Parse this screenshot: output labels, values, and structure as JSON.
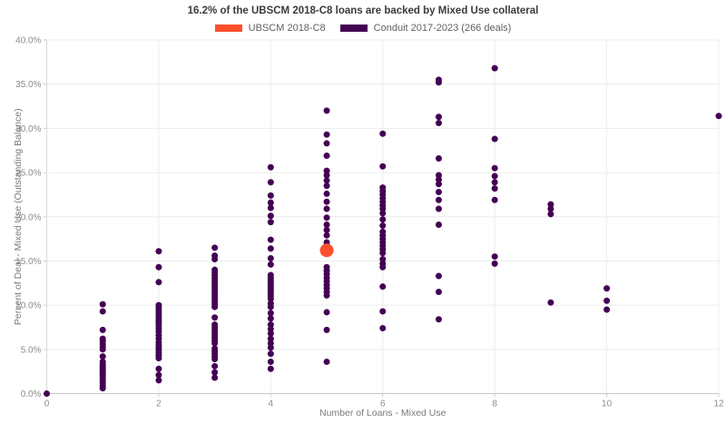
{
  "title": "16.2% of the UBSCM 2018-C8 loans are backed by Mixed Use collateral",
  "legend": [
    {
      "label": "UBSCM 2018-C8",
      "color": "#fb4f2b"
    },
    {
      "label": "Conduit 2017-2023 (266 deals)",
      "color": "#440154"
    }
  ],
  "chart_data": {
    "type": "scatter",
    "title": "16.2% of the UBSCM 2018-C8 loans are backed by Mixed Use collateral",
    "xlabel": "Number of Loans - Mixed Use",
    "ylabel": "Percent of Deal - Mixed Use (Outstanding Balance)",
    "xlim": [
      0,
      12
    ],
    "ylim": [
      0,
      40
    ],
    "grid": true,
    "legend_position": "top-center",
    "x_tick_values": [
      0,
      2,
      4,
      6,
      8,
      10,
      12
    ],
    "x_tick_labels": [
      "0",
      "2",
      "4",
      "6",
      "8",
      "10",
      "12"
    ],
    "y_tick_values": [
      0,
      5,
      10,
      15,
      20,
      25,
      30,
      35,
      40
    ],
    "y_tick_labels": [
      "0.0%",
      "5.0%",
      "10.0%",
      "15.0%",
      "20.0%",
      "25.0%",
      "30.0%",
      "35.0%",
      "40.0%"
    ],
    "series": [
      {
        "name": "Conduit 2017-2023 (266 deals)",
        "id": "conduit",
        "color": "#440154",
        "marker_radius": 3.5,
        "points": [
          [
            0,
            0.0
          ],
          [
            1,
            10.1
          ],
          [
            1,
            9.3
          ],
          [
            1,
            7.2
          ],
          [
            1,
            6.2
          ],
          [
            1,
            5.9
          ],
          [
            1,
            5.6
          ],
          [
            1,
            5.3
          ],
          [
            1,
            5.0
          ],
          [
            1,
            4.2
          ],
          [
            1,
            3.6
          ],
          [
            1,
            3.3
          ],
          [
            1,
            3.1
          ],
          [
            1,
            2.9
          ],
          [
            1,
            2.7
          ],
          [
            1,
            2.5
          ],
          [
            1,
            2.3
          ],
          [
            1,
            2.1
          ],
          [
            1,
            1.9
          ],
          [
            1,
            1.7
          ],
          [
            1,
            1.5
          ],
          [
            1,
            1.2
          ],
          [
            1,
            0.9
          ],
          [
            1,
            0.6
          ],
          [
            2,
            16.1
          ],
          [
            2,
            14.3
          ],
          [
            2,
            12.6
          ],
          [
            2,
            10.0
          ],
          [
            2,
            9.7
          ],
          [
            2,
            9.4
          ],
          [
            2,
            9.1
          ],
          [
            2,
            8.8
          ],
          [
            2,
            8.5
          ],
          [
            2,
            8.2
          ],
          [
            2,
            7.9
          ],
          [
            2,
            7.6
          ],
          [
            2,
            7.3
          ],
          [
            2,
            7.0
          ],
          [
            2,
            6.6
          ],
          [
            2,
            6.2
          ],
          [
            2,
            5.8
          ],
          [
            2,
            5.5
          ],
          [
            2,
            5.2
          ],
          [
            2,
            4.9
          ],
          [
            2,
            4.6
          ],
          [
            2,
            4.3
          ],
          [
            2,
            4.0
          ],
          [
            2,
            2.8
          ],
          [
            2,
            2.1
          ],
          [
            2,
            1.5
          ],
          [
            3,
            16.5
          ],
          [
            3,
            15.6
          ],
          [
            3,
            15.2
          ],
          [
            3,
            14.0
          ],
          [
            3,
            13.7
          ],
          [
            3,
            13.4
          ],
          [
            3,
            13.1
          ],
          [
            3,
            12.8
          ],
          [
            3,
            12.5
          ],
          [
            3,
            12.2
          ],
          [
            3,
            11.9
          ],
          [
            3,
            11.6
          ],
          [
            3,
            11.3
          ],
          [
            3,
            11.0
          ],
          [
            3,
            10.7
          ],
          [
            3,
            10.4
          ],
          [
            3,
            10.1
          ],
          [
            3,
            9.8
          ],
          [
            3,
            8.6
          ],
          [
            3,
            7.8
          ],
          [
            3,
            7.5
          ],
          [
            3,
            7.2
          ],
          [
            3,
            6.9
          ],
          [
            3,
            6.6
          ],
          [
            3,
            6.3
          ],
          [
            3,
            6.0
          ],
          [
            3,
            5.7
          ],
          [
            3,
            5.1
          ],
          [
            3,
            4.8
          ],
          [
            3,
            4.5
          ],
          [
            3,
            4.2
          ],
          [
            3,
            3.9
          ],
          [
            3,
            3.1
          ],
          [
            3,
            2.4
          ],
          [
            3,
            1.8
          ],
          [
            4,
            25.6
          ],
          [
            4,
            23.9
          ],
          [
            4,
            22.4
          ],
          [
            4,
            21.6
          ],
          [
            4,
            21.0
          ],
          [
            4,
            20.1
          ],
          [
            4,
            19.4
          ],
          [
            4,
            17.4
          ],
          [
            4,
            16.4
          ],
          [
            4,
            15.3
          ],
          [
            4,
            14.6
          ],
          [
            4,
            13.4
          ],
          [
            4,
            13.1
          ],
          [
            4,
            12.8
          ],
          [
            4,
            12.5
          ],
          [
            4,
            12.2
          ],
          [
            4,
            11.9
          ],
          [
            4,
            11.6
          ],
          [
            4,
            11.3
          ],
          [
            4,
            11.0
          ],
          [
            4,
            10.7
          ],
          [
            4,
            10.2
          ],
          [
            4,
            9.8
          ],
          [
            4,
            9.1
          ],
          [
            4,
            8.5
          ],
          [
            4,
            7.8
          ],
          [
            4,
            7.3
          ],
          [
            4,
            6.8
          ],
          [
            4,
            6.2
          ],
          [
            4,
            5.7
          ],
          [
            4,
            5.2
          ],
          [
            4,
            4.5
          ],
          [
            4,
            3.6
          ],
          [
            4,
            2.8
          ],
          [
            5,
            32.0
          ],
          [
            5,
            29.3
          ],
          [
            5,
            28.3
          ],
          [
            5,
            26.9
          ],
          [
            5,
            25.2
          ],
          [
            5,
            24.7
          ],
          [
            5,
            24.1
          ],
          [
            5,
            23.5
          ],
          [
            5,
            22.6
          ],
          [
            5,
            21.7
          ],
          [
            5,
            20.9
          ],
          [
            5,
            19.9
          ],
          [
            5,
            19.1
          ],
          [
            5,
            18.5
          ],
          [
            5,
            17.9
          ],
          [
            5,
            17.1
          ],
          [
            5,
            14.3
          ],
          [
            5,
            13.9
          ],
          [
            5,
            13.5
          ],
          [
            5,
            13.1
          ],
          [
            5,
            12.7
          ],
          [
            5,
            12.3
          ],
          [
            5,
            11.9
          ],
          [
            5,
            11.5
          ],
          [
            5,
            11.1
          ],
          [
            5,
            9.2
          ],
          [
            5,
            7.2
          ],
          [
            5,
            3.6
          ],
          [
            6,
            29.4
          ],
          [
            6,
            25.7
          ],
          [
            6,
            23.3
          ],
          [
            6,
            22.9
          ],
          [
            6,
            22.5
          ],
          [
            6,
            22.1
          ],
          [
            6,
            21.7
          ],
          [
            6,
            21.3
          ],
          [
            6,
            20.9
          ],
          [
            6,
            20.4
          ],
          [
            6,
            19.7
          ],
          [
            6,
            19.0
          ],
          [
            6,
            18.3
          ],
          [
            6,
            17.9
          ],
          [
            6,
            17.5
          ],
          [
            6,
            17.1
          ],
          [
            6,
            16.7
          ],
          [
            6,
            16.3
          ],
          [
            6,
            15.9
          ],
          [
            6,
            15.2
          ],
          [
            6,
            14.7
          ],
          [
            6,
            14.3
          ],
          [
            6,
            12.1
          ],
          [
            6,
            9.3
          ],
          [
            6,
            7.4
          ],
          [
            7,
            35.5
          ],
          [
            7,
            35.2
          ],
          [
            7,
            31.3
          ],
          [
            7,
            30.6
          ],
          [
            7,
            26.6
          ],
          [
            7,
            24.7
          ],
          [
            7,
            24.2
          ],
          [
            7,
            23.7
          ],
          [
            7,
            22.8
          ],
          [
            7,
            21.9
          ],
          [
            7,
            20.9
          ],
          [
            7,
            19.1
          ],
          [
            7,
            13.3
          ],
          [
            7,
            11.5
          ],
          [
            7,
            8.4
          ],
          [
            8,
            36.8
          ],
          [
            8,
            28.8
          ],
          [
            8,
            25.5
          ],
          [
            8,
            24.6
          ],
          [
            8,
            23.9
          ],
          [
            8,
            23.2
          ],
          [
            8,
            21.9
          ],
          [
            8,
            15.5
          ],
          [
            8,
            14.7
          ],
          [
            9,
            21.4
          ],
          [
            9,
            20.9
          ],
          [
            9,
            20.3
          ],
          [
            9,
            10.3
          ],
          [
            10,
            11.9
          ],
          [
            10,
            10.5
          ],
          [
            10,
            9.5
          ],
          [
            12,
            31.4
          ]
        ]
      },
      {
        "name": "UBSCM 2018-C8",
        "id": "subject",
        "color": "#fb4f2b",
        "marker_radius": 7.5,
        "points": [
          [
            5,
            16.2
          ]
        ]
      }
    ]
  },
  "colors": {
    "grid": "#ececec",
    "x_axis_line": "#c6c6c6",
    "y_axis_line": "#d9d9d9",
    "tick_mark": "#cfcfcf"
  }
}
